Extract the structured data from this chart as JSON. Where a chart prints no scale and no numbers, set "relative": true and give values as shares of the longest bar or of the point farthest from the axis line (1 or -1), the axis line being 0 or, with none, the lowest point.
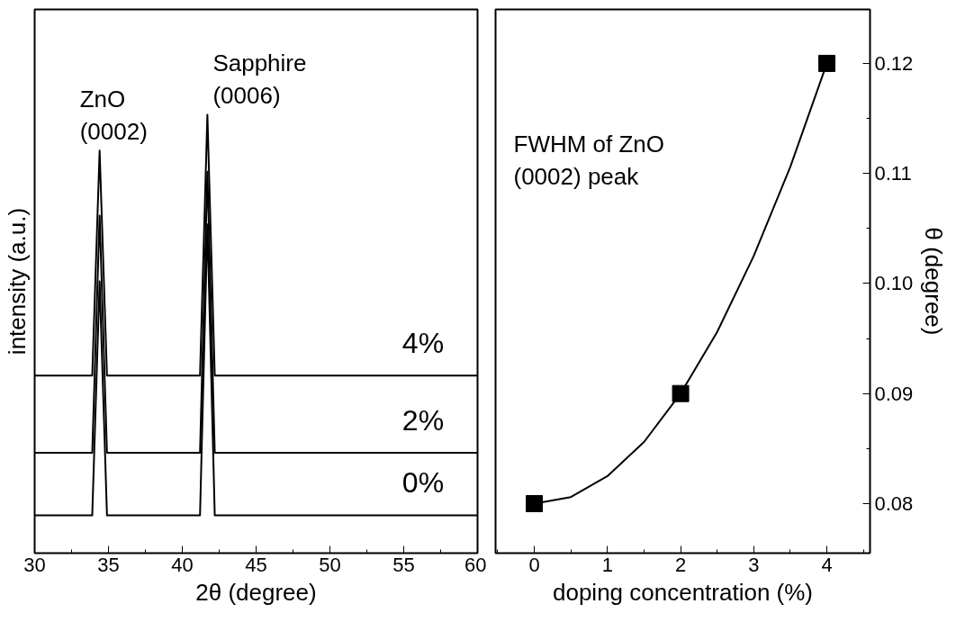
{
  "chart_data": [
    {
      "type": "line",
      "relative": true,
      "xlabel": "2θ (degree)",
      "ylabel": "intensity (a.u.)",
      "xlim": [
        30,
        60
      ],
      "xticks": [
        30,
        35,
        40,
        45,
        50,
        55,
        60
      ],
      "tick_labels": "x",
      "grid": false,
      "annotations": [
        {
          "text": "ZnO\n(0002)",
          "x": 34.4,
          "y": 0.918
        },
        {
          "text": "Sapphire\n(0006)",
          "x": 41.7,
          "y": 1
        }
      ],
      "series": [
        {
          "name": "4%",
          "color": "#000000",
          "x": [
            30,
            33.9,
            34.4,
            34.9,
            41.2,
            41.7,
            42.2,
            60
          ],
          "values": [
            0.405,
            0.405,
            0.918,
            0.405,
            0.405,
            1,
            0.405,
            0.405
          ]
        },
        {
          "name": "2%",
          "color": "#000000",
          "x": [
            30,
            33.9,
            34.4,
            34.9,
            41.2,
            41.7,
            42.2,
            60
          ],
          "values": [
            0.229,
            0.229,
            0.77,
            0.229,
            0.229,
            0.87,
            0.229,
            0.229
          ]
        },
        {
          "name": "0%",
          "color": "#000000",
          "x": [
            30,
            33.9,
            34.4,
            34.9,
            41.2,
            41.7,
            42.2,
            60
          ],
          "values": [
            0.086,
            0.086,
            0.62,
            0.086,
            0.086,
            0.75,
            0.086,
            0.086
          ]
        }
      ]
    },
    {
      "type": "scatter",
      "xlabel": "doping concentration (%)",
      "ylabel": "θ (degree)",
      "xlim": [
        -0.53,
        4.59
      ],
      "xticks": [
        0,
        1,
        2,
        3,
        4
      ],
      "ylim": [
        0.0755,
        0.1249
      ],
      "yticks": [
        0.08,
        0.09,
        {
          "value": 0.1,
          "label": "0.10"
        },
        0.11,
        0.12
      ],
      "grid": false,
      "marker": "square",
      "annotations": [
        "FWHM of ZnO\n(0002) peak"
      ],
      "series": [
        {
          "color": "#000000",
          "x": [
            0,
            2,
            4
          ],
          "values": [
            0.08,
            0.09,
            0.12
          ]
        },
        {
          "type": "line",
          "marker": "none",
          "color": "#000000",
          "x": [
            0,
            0.5,
            1,
            1.5,
            2,
            2.5,
            3,
            3.5,
            4
          ],
          "values": [
            0.08,
            0.0806,
            0.0825,
            0.0856,
            0.09,
            0.0956,
            0.1025,
            0.1106,
            0.12
          ]
        }
      ]
    }
  ]
}
